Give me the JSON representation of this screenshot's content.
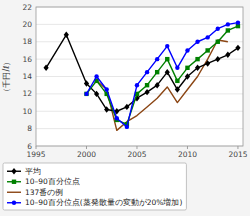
{
  "chart_data": {
    "type": "line",
    "ylabel": "（千円/ℓ）",
    "xlim": [
      1995,
      2015.5
    ],
    "ylim": [
      6,
      22
    ],
    "xticks": [
      1995,
      2000,
      2005,
      2010,
      2015
    ],
    "yticks": [
      6,
      8,
      10,
      12,
      14,
      16,
      18,
      20,
      22
    ],
    "grid": "y",
    "legend": "bottom",
    "series": [
      {
        "name": "平均",
        "color": "#000000",
        "marker": "diamond",
        "x": [
          1996,
          1998,
          2000,
          2001,
          2002,
          2003,
          2004,
          2005,
          2006,
          2007,
          2008,
          2009,
          2010,
          2011,
          2012,
          2013,
          2014,
          2015
        ],
        "values": [
          15.0,
          18.8,
          13.2,
          12.0,
          10.2,
          10.0,
          10.5,
          11.5,
          12.2,
          13.0,
          14.5,
          12.5,
          14.0,
          15.0,
          15.5,
          16.0,
          16.5,
          17.3
        ]
      },
      {
        "name": "10–90百分位点",
        "color": "#008000",
        "marker": "square",
        "x": [
          2000,
          2001,
          2002,
          2003,
          2004,
          2005,
          2006,
          2007,
          2008,
          2009,
          2010,
          2011,
          2012,
          2013,
          2014,
          2015
        ],
        "values": [
          12.0,
          13.5,
          12.0,
          9.0,
          8.5,
          12.0,
          13.0,
          14.5,
          16.0,
          13.5,
          15.0,
          16.0,
          17.0,
          18.0,
          19.3,
          19.8
        ]
      },
      {
        "name": "137番の例",
        "color": "#8B4513",
        "x": [
          2001,
          2002,
          2003,
          2004,
          2005,
          2006,
          2007,
          2008,
          2009,
          2010,
          2011,
          2012,
          2013,
          2014
        ],
        "values": [
          13.5,
          12.5,
          7.8,
          8.8,
          9.5,
          10.5,
          11.5,
          12.8,
          11.0,
          12.5,
          14.0,
          16.0,
          18.2,
          18.0
        ]
      },
      {
        "name": "10–90百分位点(蒸発散量の変動が20%増加)",
        "color": "#0000FF",
        "marker": "circle",
        "x": [
          2000,
          2001,
          2002,
          2003,
          2004,
          2005,
          2006,
          2007,
          2008,
          2009,
          2010,
          2011,
          2012,
          2013,
          2014,
          2015
        ],
        "values": [
          12.0,
          14.0,
          12.5,
          9.2,
          8.2,
          13.0,
          14.5,
          16.0,
          17.5,
          15.0,
          17.0,
          18.0,
          18.5,
          19.5,
          20.0,
          20.2
        ]
      }
    ]
  }
}
